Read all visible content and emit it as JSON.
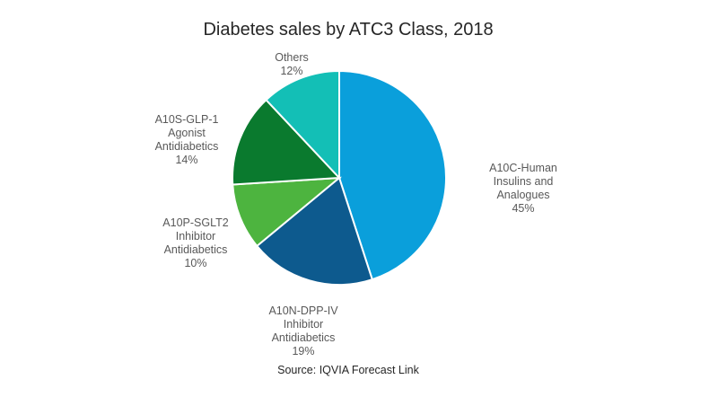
{
  "chart_data": {
    "type": "pie",
    "title": "Diabetes sales by ATC3 Class, 2018",
    "source": "Source: IQVIA Forecast Link",
    "slices": [
      {
        "label_lines": [
          "A10C-Human",
          "Insulins and",
          "Analogues"
        ],
        "value": 45,
        "value_label": "45%",
        "color": "#0a9fdb"
      },
      {
        "label_lines": [
          "A10N-DPP-IV",
          "Inhibitor",
          "Antidiabetics"
        ],
        "value": 19,
        "value_label": "19%",
        "color": "#0d5a8e"
      },
      {
        "label_lines": [
          "A10P-SGLT2",
          "Inhibitor",
          "Antidiabetics"
        ],
        "value": 10,
        "value_label": "10%",
        "color": "#4db43f"
      },
      {
        "label_lines": [
          "A10S-GLP-1",
          "Agonist",
          "Antidiabetics"
        ],
        "value": 14,
        "value_label": "14%",
        "color": "#0a7a2e"
      },
      {
        "label_lines": [
          "Others"
        ],
        "value": 12,
        "value_label": "12%",
        "color": "#13bfb6"
      }
    ]
  }
}
